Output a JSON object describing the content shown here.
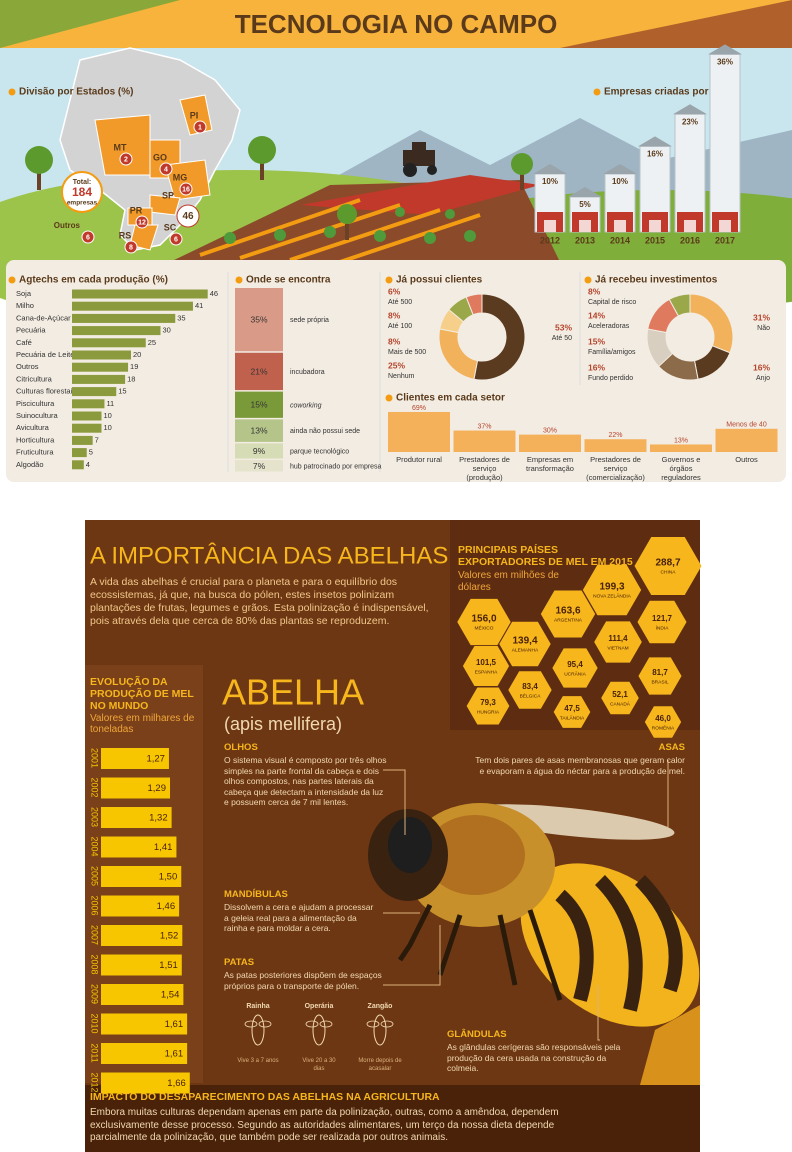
{
  "header": {
    "title": "TECNOLOGIA NO CAMPO"
  },
  "states": {
    "title": "Divisão por Estados (%)",
    "total_label": "Total:",
    "total": 184,
    "total_unit": "empresas",
    "items": [
      {
        "label": "PI",
        "value": 1
      },
      {
        "label": "MT",
        "value": 2
      },
      {
        "label": "GO",
        "value": 4
      },
      {
        "label": "MG",
        "value": 16
      },
      {
        "label": "SP",
        "value": 46
      },
      {
        "label": "PR",
        "value": 12
      },
      {
        "label": "SC",
        "value": 6
      },
      {
        "label": "RS",
        "value": 8
      },
      {
        "label": "Outros",
        "value": 6
      }
    ]
  },
  "companies": {
    "title": "Empresas criadas por ano",
    "categories": [
      "2012",
      "2013",
      "2014",
      "2015",
      "2016",
      "2017"
    ],
    "values": [
      10,
      5,
      10,
      16,
      23,
      36
    ],
    "value_labels": [
      "10%",
      "5%",
      "10%",
      "16%",
      "23%",
      "36%"
    ]
  },
  "agtechs": {
    "title": "Agtechs em cada produção (%)",
    "color": "#8a9a3c",
    "categories": [
      "Soja",
      "Milho",
      "Cana-de-Açúcar",
      "Pecuária",
      "Café",
      "Pecuária de Leite",
      "Outros",
      "Citricultura",
      "Culturas florestais",
      "Piscicultura",
      "Suinocultura",
      "Avicultura",
      "Horticultura",
      "Fruticultura",
      "Algodão"
    ],
    "values": [
      46,
      41,
      35,
      30,
      25,
      20,
      19,
      18,
      15,
      11,
      10,
      10,
      7,
      5,
      4
    ]
  },
  "location": {
    "title": "Onde se encontra",
    "categories": [
      "sede própria",
      "incubadora",
      "coworking",
      "ainda não possui sede",
      "parque tecnológico",
      "hub patrocinado por empresa"
    ],
    "values": [
      35,
      21,
      15,
      13,
      9,
      7
    ],
    "value_labels": [
      "35%",
      "21%",
      "15%",
      "13%",
      "9%",
      "7%"
    ],
    "colors": [
      "#d99a87",
      "#c0614e",
      "#7a9a3a",
      "#b5c58a",
      "#d6dcb5",
      "#e6e3cc"
    ]
  },
  "clients": {
    "title": "Já possui clientes",
    "categories": [
      "Até 50",
      "Nenhum",
      "Mais de 500",
      "Até 100",
      "Até 500"
    ],
    "values": [
      53,
      25,
      8,
      8,
      6
    ],
    "value_labels": [
      "53%",
      "25%",
      "8%",
      "8%",
      "6%"
    ],
    "colors": [
      "#5a3b1f",
      "#f2b25c",
      "#f6d08a",
      "#9aa84a",
      "#e07a5f"
    ]
  },
  "investments": {
    "title": "Já recebeu investimentos",
    "categories": [
      "Não",
      "Anjo",
      "Fundo perdido",
      "Família/amigos",
      "Aceleradoras",
      "Capital de risco"
    ],
    "values": [
      31,
      16,
      16,
      15,
      14,
      8
    ],
    "value_labels": [
      "31%",
      "16%",
      "16%",
      "15%",
      "14%",
      "8%"
    ],
    "colors": [
      "#f2b25c",
      "#5a3b1f",
      "#8b6b4a",
      "#d8cfc0",
      "#e07a5f",
      "#9aa84a"
    ]
  },
  "sectors": {
    "title": "Clientes em cada setor",
    "categories": [
      "Produtor rural",
      "Prestadores de serviço (produção)",
      "Empresas em transformação",
      "Prestadores de serviço (comercialização)",
      "Governos e órgãos reguladores",
      "Outros"
    ],
    "values": [
      69,
      37,
      30,
      22,
      13,
      40
    ],
    "value_labels": [
      "69%",
      "37%",
      "30%",
      "22%",
      "13%",
      "Menos de 40"
    ]
  },
  "bees": {
    "title": "A IMPORTÂNCIA DAS ABELHAS",
    "intro": "A vida das abelhas é crucial para o planeta e para o equilíbrio dos ecossistemas, já que, na busca do pólen, estes insetos polinizam plantações de frutas, legumes e grãos. Esta polinização é indispensável, pois através dela que cerca de 80% das plantas se reproduzem."
  },
  "exporters": {
    "title": "PRINCIPAIS PAÍSES EXPORTADORES DE MEL EM 2015",
    "subtitle": "Valores em milhões de dólares",
    "categories": [
      "CHINA",
      "NOVA ZELÂNDIA",
      "ARGENTINA",
      "ÍNDIA",
      "MÉXICO",
      "ALEMANHA",
      "VIETNAM",
      "UCRÂNIA",
      "ESPANHA",
      "BRASIL",
      "BÉLGICA",
      "CANADÁ",
      "HUNGRIA",
      "TAILÂNDIA",
      "ROMÊNIA"
    ],
    "values": [
      288.7,
      199.3,
      163.6,
      121.7,
      156.0,
      139.4,
      111.4,
      95.4,
      101.5,
      81.7,
      83.4,
      52.1,
      79.3,
      47.5,
      46.0
    ],
    "value_labels": [
      "288,7",
      "199,3",
      "163,6",
      "121,7",
      "156,0",
      "139,4",
      "111,4",
      "95,4",
      "101,5",
      "81,7",
      "83,4",
      "52,1",
      "79,3",
      "47,5",
      "46,0"
    ]
  },
  "production": {
    "title": "EVOLUÇÃO DA PRODUÇÃO DE MEL NO MUNDO",
    "subtitle": "Valores em milhares de toneladas",
    "categories": [
      "2001",
      "2002",
      "2003",
      "2004",
      "2005",
      "2006",
      "2007",
      "2008",
      "2009",
      "2010",
      "2011",
      "2012"
    ],
    "values": [
      1.27,
      1.29,
      1.32,
      1.41,
      1.5,
      1.46,
      1.52,
      1.51,
      1.54,
      1.61,
      1.61,
      1.66
    ],
    "value_labels": [
      "1,27",
      "1,29",
      "1,32",
      "1,41",
      "1,50",
      "1,46",
      "1,52",
      "1,51",
      "1,54",
      "1,61",
      "1,61",
      "1,66"
    ]
  },
  "anatomy": {
    "name": "ABELHA",
    "scientific": "(apis mellifera)",
    "parts": [
      {
        "title": "OLHOS",
        "text": "O sistema visual é composto por três olhos simples na parte frontal da cabeça e dois olhos compostos, nas partes laterais da cabeça que detectam a intensidade da luz e possuem cerca de 7 mil lentes."
      },
      {
        "title": "ASAS",
        "text": "Tem dois pares de asas membranosas que geram calor e evaporam a água do néctar para a produção de mel."
      },
      {
        "title": "MANDÍBULAS",
        "text": "Dissolvem a cera e ajudam a processar a geleia real para a alimentação da rainha e para moldar a cera."
      },
      {
        "title": "PATAS",
        "text": "As patas posteriores dispõem de espaços próprios para o transporte de pólen."
      },
      {
        "title": "GLÂNDULAS",
        "text": "As glândulas cerígeras são responsáveis pela produção da cera usada na construção da colmeia."
      }
    ]
  },
  "castes": [
    {
      "name": "Rainha",
      "text": "Vive 3 a 7 anos"
    },
    {
      "name": "Operária",
      "text": "Vive 20 a 30 dias"
    },
    {
      "name": "Zangão",
      "text": "Morre depois de acasalar"
    }
  ],
  "impact": {
    "title": "IMPACTO DO DESAPARECIMENTO DAS ABELHAS NA AGRICULTURA",
    "text": "Embora muitas culturas dependam apenas em parte da polinização, outras, como a amêndoa, dependem exclusivamente desse processo. Segundo as autoridades alimentares, um terço da nossa dieta depende parcialmente da polinização, que também pode ser realizada por outros animais."
  }
}
